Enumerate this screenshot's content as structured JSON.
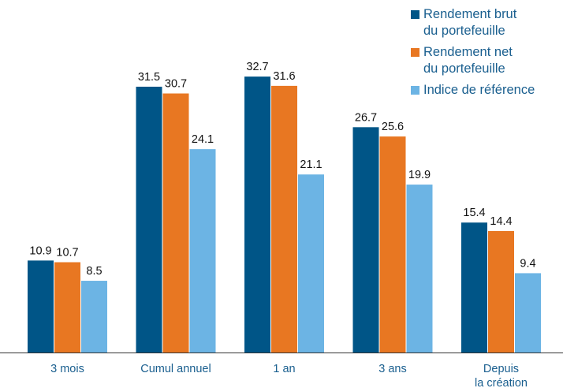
{
  "chart_data": {
    "type": "bar",
    "categories": [
      "3 mois",
      "Cumul annuel",
      "1 an",
      "3 ans",
      "Depuis\nla création"
    ],
    "series": [
      {
        "name": "Rendement brut\ndu portefeuille",
        "color": "#005587",
        "values": [
          10.9,
          31.5,
          32.7,
          26.7,
          15.4
        ]
      },
      {
        "name": "Rendement net\ndu portefeuille",
        "color": "#e87722",
        "values": [
          10.7,
          30.7,
          31.6,
          25.6,
          14.4
        ]
      },
      {
        "name": "Indice de référence",
        "color": "#6cb4e4",
        "values": [
          8.5,
          24.1,
          21.1,
          19.9,
          9.4
        ]
      }
    ],
    "ylim": [
      0,
      36
    ],
    "grid": false,
    "legend_position": "top-right",
    "value_labels": true,
    "category_label_color": "#1a5f8f",
    "axis_color": "#333333"
  }
}
